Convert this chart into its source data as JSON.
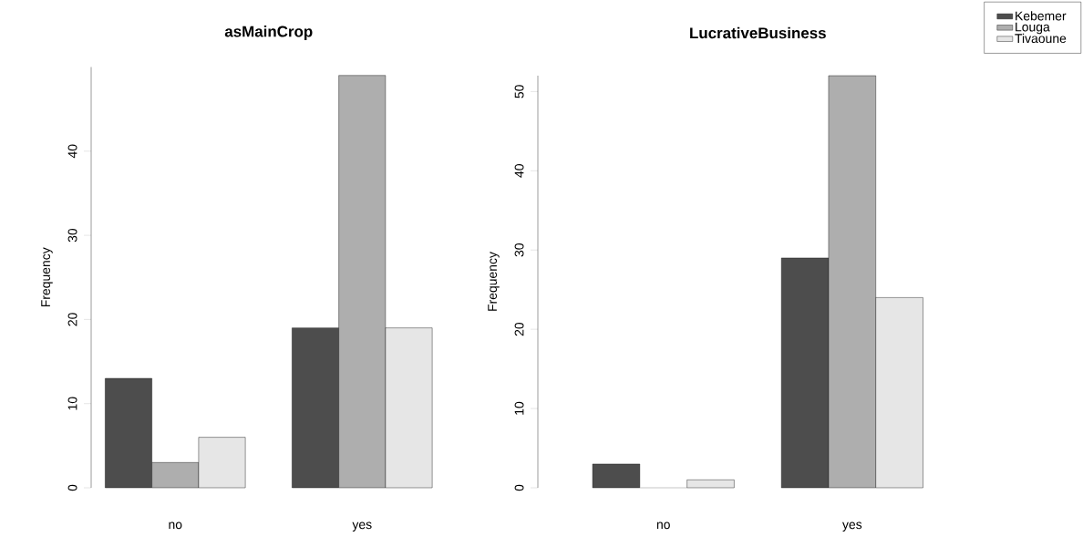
{
  "chart_data": [
    {
      "type": "bar",
      "title": "asMainCrop",
      "ylabel": "Frequency",
      "categories": [
        "no",
        "yes"
      ],
      "series": [
        {
          "color": "#4d4d4d",
          "values": [
            13,
            19
          ]
        },
        {
          "color": "#aeaeae",
          "values": [
            3,
            49
          ]
        },
        {
          "color": "#e6e6e6",
          "values": [
            6,
            19
          ]
        }
      ],
      "ylim": [
        0,
        50
      ],
      "yticks": [
        0,
        10,
        20,
        30,
        40
      ]
    },
    {
      "type": "bar",
      "title": "LucrativeBusiness",
      "ylabel": "Frequency",
      "categories": [
        "no",
        "yes"
      ],
      "series": [
        {
          "name": "Kebemer",
          "color": "#4d4d4d",
          "values": [
            3,
            29
          ]
        },
        {
          "name": "Louga",
          "color": "#aeaeae",
          "values": [
            0,
            52
          ]
        },
        {
          "name": "Tivaoune",
          "color": "#e6e6e6",
          "values": [
            1,
            24
          ]
        }
      ],
      "ylim": [
        0,
        52
      ],
      "yticks": [
        0,
        10,
        20,
        30,
        40,
        50
      ],
      "legend": "top right"
    }
  ]
}
